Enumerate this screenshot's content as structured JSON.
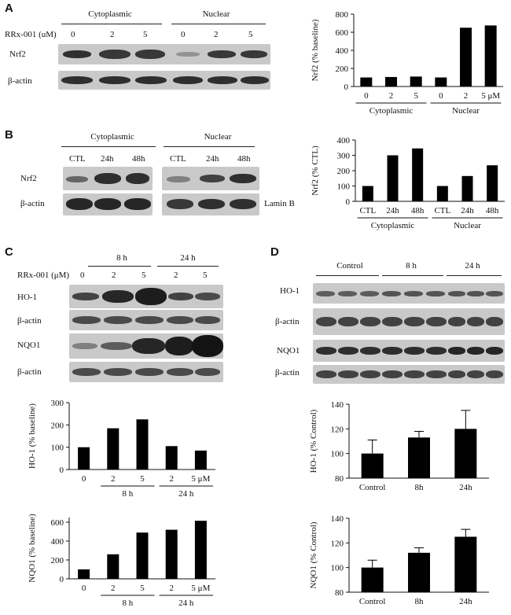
{
  "panels": {
    "A": {
      "letter": "A",
      "treatment_label": "RRx-001 (uM)",
      "group_labels": [
        "Cytoplasmic",
        "Nuclear"
      ],
      "lane_values": [
        "0",
        "2",
        "5",
        "0",
        "2",
        "5"
      ],
      "rows": [
        "Nrf2",
        "β-actin"
      ]
    },
    "B": {
      "letter": "B",
      "group_labels": [
        "Cytoplasmic",
        "Nuclear"
      ],
      "lane_values": [
        "CTL",
        "24h",
        "48h",
        "CTL",
        "24h",
        "48h"
      ],
      "rows": [
        "Nrf2",
        "β-actin"
      ],
      "right_label": "Lamin B"
    },
    "C": {
      "letter": "C",
      "treatment_label": "RRx-001 (μM)",
      "group_labels": [
        "8 h",
        "24 h"
      ],
      "lane_values": [
        "0",
        "2",
        "5",
        "2",
        "5"
      ],
      "rows": [
        "HO-1",
        "β-actin",
        "NQO1",
        "β-actin"
      ]
    },
    "D": {
      "letter": "D",
      "group_labels": [
        "Control",
        "8 h",
        "24 h"
      ],
      "rows": [
        "HO-1",
        "β-actin",
        "NQO1",
        "β-actin"
      ]
    }
  },
  "chart_data": [
    {
      "id": "A",
      "type": "bar",
      "ylabel": "Nrf2 (% baseline)",
      "ylim": [
        0,
        800
      ],
      "yticks": [
        0,
        200,
        400,
        600,
        800
      ],
      "categories": [
        "0",
        "2",
        "5",
        "0",
        "2",
        "5 μM"
      ],
      "values": [
        100,
        105,
        110,
        100,
        650,
        675
      ],
      "groups": [
        {
          "label": "Cytoplasmic",
          "from": 0,
          "to": 2
        },
        {
          "label": "Nuclear",
          "from": 3,
          "to": 5
        }
      ]
    },
    {
      "id": "B",
      "type": "bar",
      "ylabel": "Nrf2 (% CTL)",
      "ylim": [
        0,
        400
      ],
      "yticks": [
        0,
        100,
        200,
        300,
        400
      ],
      "categories": [
        "CTL",
        "24h",
        "48h",
        "CTL",
        "24h",
        "48h"
      ],
      "values": [
        100,
        300,
        345,
        100,
        165,
        235
      ],
      "groups": [
        {
          "label": "Cytoplasmic",
          "from": 0,
          "to": 2
        },
        {
          "label": "Nuclear",
          "from": 3,
          "to": 5
        }
      ]
    },
    {
      "id": "C1",
      "type": "bar",
      "ylabel": "HO-1 (% baseline)",
      "ylim": [
        0,
        300
      ],
      "yticks": [
        0,
        100,
        200,
        300
      ],
      "categories": [
        "0",
        "2",
        "5",
        "2",
        "5 μM"
      ],
      "values": [
        100,
        185,
        225,
        105,
        85
      ],
      "groups": [
        {
          "label": "8 h",
          "from": 1,
          "to": 2
        },
        {
          "label": "24 h",
          "from": 3,
          "to": 4
        }
      ]
    },
    {
      "id": "C2",
      "type": "bar",
      "ylabel": "NQO1 (% baseline)",
      "ylim": [
        0,
        650
      ],
      "yticks": [
        0,
        200,
        400,
        600
      ],
      "categories": [
        "0",
        "2",
        "5",
        "2",
        "5 μM"
      ],
      "values": [
        100,
        260,
        490,
        520,
        615
      ],
      "groups": [
        {
          "label": "8 h",
          "from": 1,
          "to": 2
        },
        {
          "label": "24 h",
          "from": 3,
          "to": 4
        }
      ]
    },
    {
      "id": "D1",
      "type": "bar",
      "ylabel": "HO-1 (% Control)",
      "ylim": [
        80,
        140
      ],
      "yticks": [
        80,
        100,
        120,
        140
      ],
      "categories": [
        "Control",
        "8h",
        "24h"
      ],
      "values": [
        100,
        113,
        120
      ],
      "errors": [
        11,
        5,
        15
      ],
      "groups": []
    },
    {
      "id": "D2",
      "type": "bar",
      "ylabel": "NQO1 (% Control)",
      "ylim": [
        80,
        140
      ],
      "yticks": [
        80,
        100,
        120,
        140
      ],
      "categories": [
        "Control",
        "8h",
        "24h"
      ],
      "values": [
        100,
        112,
        125
      ],
      "errors": [
        6,
        4,
        6
      ],
      "groups": []
    }
  ]
}
